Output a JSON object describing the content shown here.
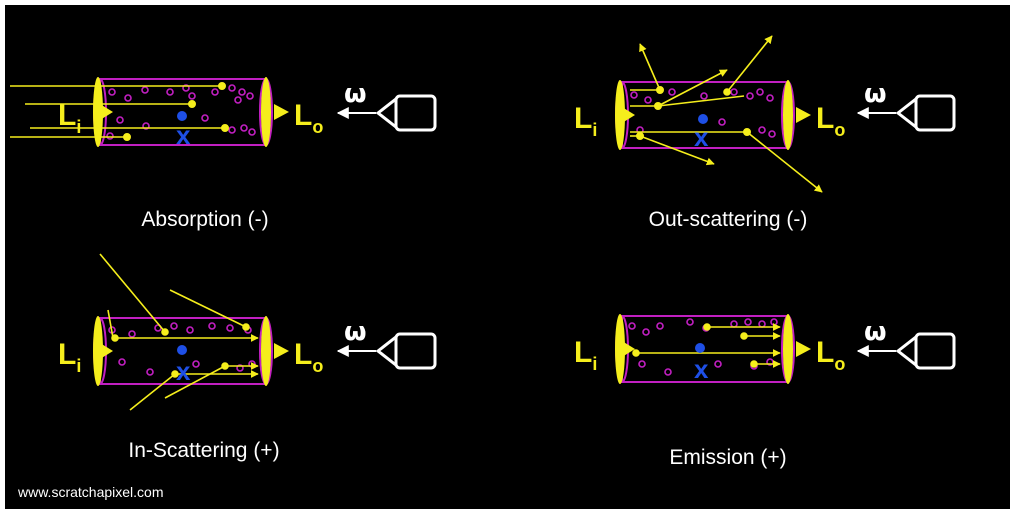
{
  "watermark": "www.scratchapixel.com",
  "panels": [
    {
      "title": "Absorption (-)"
    },
    {
      "title": "Out-scattering (-)"
    },
    {
      "title": "In-Scattering (+)"
    },
    {
      "title": "Emission (+)"
    }
  ],
  "labels": {
    "incoming": "L",
    "incoming_sub": "i",
    "outgoing": "L",
    "outgoing_sub": "o",
    "direction": "ω",
    "point": "x"
  },
  "colors": {
    "background": "#000000",
    "beam": "#f5ee1c",
    "particles": "#c21fc2",
    "point": "#1e4fe6",
    "camera": "#ffffff"
  }
}
